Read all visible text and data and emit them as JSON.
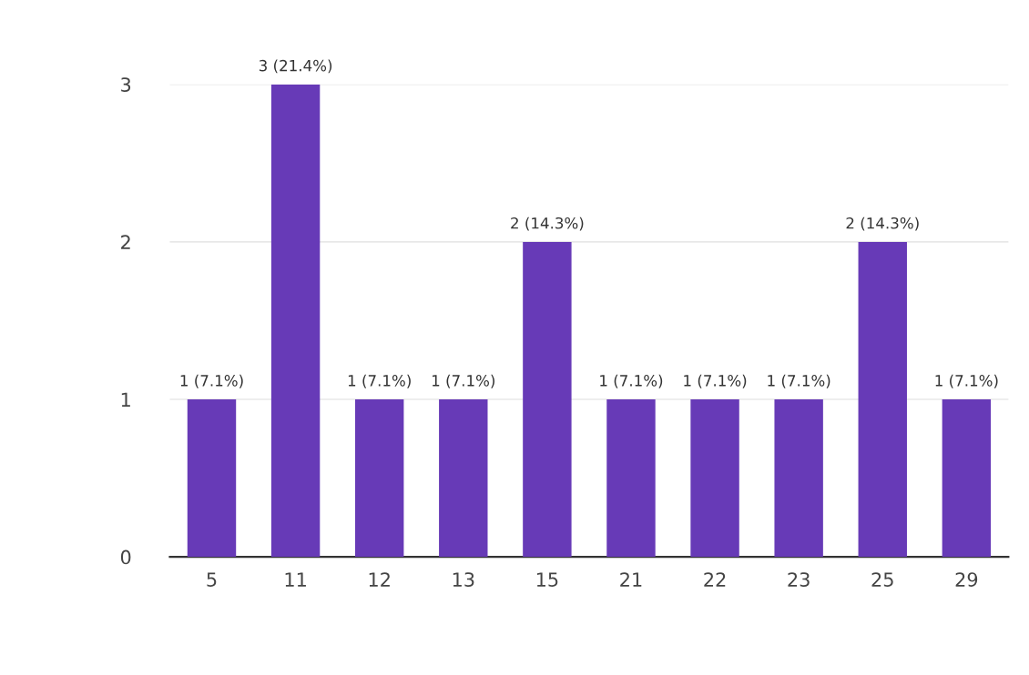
{
  "chart_data": {
    "type": "bar",
    "categories": [
      "5",
      "11",
      "12",
      "13",
      "15",
      "21",
      "22",
      "23",
      "25",
      "29"
    ],
    "values": [
      1,
      3,
      1,
      1,
      2,
      1,
      1,
      1,
      2,
      1
    ],
    "value_labels": [
      "1 (7.1%)",
      "3 (21.4%)",
      "1 (7.1%)",
      "1 (7.1%)",
      "2 (14.3%)",
      "1 (7.1%)",
      "1 (7.1%)",
      "1 (7.1%)",
      "2 (14.3%)",
      "1 (7.1%)"
    ],
    "color": "#673ab7",
    "ylim": [
      0,
      3
    ],
    "yticks": [
      0,
      1,
      2,
      3
    ],
    "grid": "y",
    "legend": false
  }
}
